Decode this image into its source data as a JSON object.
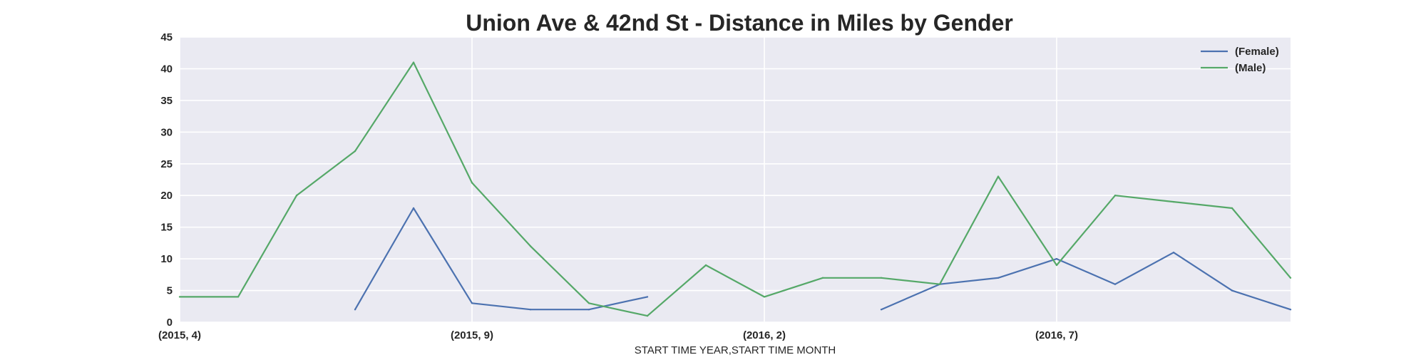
{
  "chart_data": {
    "type": "line",
    "title": "Union Ave & 42nd St - Distance in Miles by Gender",
    "xlabel": "START TIME YEAR,START TIME MONTH",
    "ylabel": "",
    "x": [
      "(2015, 4)",
      "(2015, 5)",
      "(2015, 6)",
      "(2015, 7)",
      "(2015, 8)",
      "(2015, 9)",
      "(2015, 10)",
      "(2015, 11)",
      "(2015, 12)",
      "(2016, 1)",
      "(2016, 2)",
      "(2016, 3)",
      "(2016, 4)",
      "(2016, 5)",
      "(2016, 6)",
      "(2016, 7)",
      "(2016, 8)",
      "(2016, 9)",
      "(2016, 10)",
      "(2016, 11)"
    ],
    "x_ticks": [
      "(2015, 4)",
      "(2015, 9)",
      "(2016, 2)",
      "(2016, 7)"
    ],
    "ylim": [
      0,
      45
    ],
    "y_ticks": [
      0,
      5,
      10,
      15,
      20,
      25,
      30,
      35,
      40,
      45
    ],
    "grid": true,
    "legend_position": "top-right",
    "series": [
      {
        "name": "(Female)",
        "color": "#4c72b0",
        "values": [
          null,
          null,
          null,
          2,
          18,
          3,
          2,
          2,
          4,
          null,
          null,
          null,
          2,
          6,
          7,
          10,
          6,
          11,
          5,
          2
        ]
      },
      {
        "name": "(Male)",
        "color": "#55a868",
        "values": [
          4,
          4,
          20,
          27,
          41,
          22,
          12,
          3,
          1,
          9,
          4,
          7,
          7,
          6,
          23,
          9,
          20,
          19,
          18,
          7
        ]
      }
    ]
  }
}
